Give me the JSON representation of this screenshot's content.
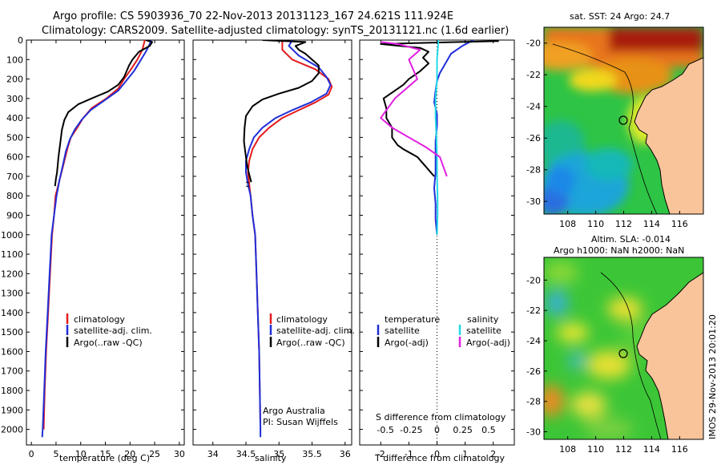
{
  "header": {
    "line1": "Argo profile: CS 5903936_70 22-Nov-2013 20131123_167 24.621S 111.924E",
    "line2": "Climatology: CARS2009. Satellite-adjusted climatology: synTS_20131121.nc (1.6d earlier)"
  },
  "colors": {
    "climatology": "#e41a1c",
    "satellite": "#1f2fd8",
    "argo": "#000000",
    "sat_salinity": "#22d8e8",
    "argo_salinity": "#e020e0",
    "land": "#f9c49a"
  },
  "chart_data": [
    {
      "type": "line",
      "panel": "temperature",
      "xlabel": "temperature (deg C)",
      "ylabel": "",
      "xlim": [
        -1,
        31
      ],
      "ylim": [
        2080,
        0
      ],
      "xticks": [
        0,
        5,
        10,
        15,
        20,
        25,
        30
      ],
      "yticks": [
        0,
        100,
        200,
        300,
        400,
        500,
        600,
        700,
        800,
        900,
        1000,
        1100,
        1200,
        1300,
        1400,
        1500,
        1600,
        1700,
        1800,
        1900,
        2000
      ],
      "series": [
        {
          "name": "climatology",
          "color": "#e41a1c",
          "points": [
            [
              23.0,
              0
            ],
            [
              22.5,
              50
            ],
            [
              21.5,
              100
            ],
            [
              20.2,
              150
            ],
            [
              18.8,
              200
            ],
            [
              17.6,
              250
            ],
            [
              15.2,
              300
            ],
            [
              12.2,
              350
            ],
            [
              10.5,
              400
            ],
            [
              9.3,
              450
            ],
            [
              8.0,
              500
            ],
            [
              7.4,
              550
            ],
            [
              6.9,
              600
            ],
            [
              6.4,
              650
            ],
            [
              5.9,
              700
            ],
            [
              5.4,
              750
            ],
            [
              4.9,
              800
            ],
            [
              4.6,
              900
            ],
            [
              4.2,
              1000
            ],
            [
              3.8,
              1200
            ],
            [
              3.4,
              1400
            ],
            [
              3.0,
              1600
            ],
            [
              2.7,
              1800
            ],
            [
              2.5,
              2000
            ]
          ]
        },
        {
          "name": "satellite-adj. clim.",
          "color": "#1f2fd8",
          "points": [
            [
              24.3,
              0
            ],
            [
              24.0,
              20
            ],
            [
              23.2,
              60
            ],
            [
              22.0,
              110
            ],
            [
              20.8,
              160
            ],
            [
              19.2,
              210
            ],
            [
              17.6,
              260
            ],
            [
              14.8,
              310
            ],
            [
              12.0,
              360
            ],
            [
              10.2,
              410
            ],
            [
              8.8,
              460
            ],
            [
              7.8,
              510
            ],
            [
              7.0,
              570
            ],
            [
              6.4,
              640
            ],
            [
              5.7,
              720
            ],
            [
              5.1,
              800
            ],
            [
              4.6,
              900
            ],
            [
              4.1,
              1000
            ],
            [
              3.7,
              1200
            ],
            [
              3.3,
              1400
            ],
            [
              2.9,
              1600
            ],
            [
              2.6,
              1800
            ],
            [
              2.3,
              2000
            ],
            [
              2.2,
              2040
            ]
          ]
        },
        {
          "name": "Argo(..raw -QC)",
          "color": "#000000",
          "points": [
            [
              23.2,
              0
            ],
            [
              24.5,
              10
            ],
            [
              24.0,
              30
            ],
            [
              21.8,
              60
            ],
            [
              20.5,
              100
            ],
            [
              19.8,
              130
            ],
            [
              18.8,
              190
            ],
            [
              17.6,
              230
            ],
            [
              15.5,
              265
            ],
            [
              12.2,
              300
            ],
            [
              9.5,
              330
            ],
            [
              7.5,
              370
            ],
            [
              6.7,
              410
            ],
            [
              6.2,
              460
            ],
            [
              5.9,
              520
            ],
            [
              5.5,
              600
            ],
            [
              5.2,
              680
            ],
            [
              5.0,
              710
            ],
            [
              4.9,
              730
            ],
            [
              4.8,
              750
            ]
          ]
        }
      ]
    },
    {
      "type": "line",
      "panel": "salinity",
      "xlabel": "salinity",
      "ylabel": "",
      "xlim": [
        33.7,
        36.1
      ],
      "ylim": [
        2080,
        0
      ],
      "xticks": [
        34,
        34.5,
        35,
        35.5,
        36
      ],
      "series": [
        {
          "name": "climatology",
          "color": "#e41a1c",
          "points": [
            [
              35.05,
              0
            ],
            [
              35.05,
              50
            ],
            [
              35.2,
              100
            ],
            [
              35.55,
              150
            ],
            [
              35.75,
              200
            ],
            [
              35.8,
              240
            ],
            [
              35.75,
              280
            ],
            [
              35.55,
              320
            ],
            [
              35.3,
              360
            ],
            [
              35.05,
              400
            ],
            [
              34.85,
              450
            ],
            [
              34.7,
              500
            ],
            [
              34.6,
              560
            ],
            [
              34.55,
              620
            ],
            [
              34.53,
              680
            ],
            [
              34.55,
              740
            ],
            [
              34.57,
              800
            ],
            [
              34.6,
              900
            ],
            [
              34.64,
              1000
            ],
            [
              34.66,
              1200
            ],
            [
              34.68,
              1400
            ],
            [
              34.7,
              1600
            ],
            [
              34.71,
              1800
            ],
            [
              34.72,
              2000
            ]
          ]
        },
        {
          "name": "satellite-adj. clim.",
          "color": "#1f2fd8",
          "points": [
            [
              35.2,
              0
            ],
            [
              35.15,
              30
            ],
            [
              35.3,
              80
            ],
            [
              35.6,
              140
            ],
            [
              35.72,
              190
            ],
            [
              35.78,
              230
            ],
            [
              35.72,
              275
            ],
            [
              35.48,
              320
            ],
            [
              35.2,
              360
            ],
            [
              34.95,
              400
            ],
            [
              34.75,
              450
            ],
            [
              34.62,
              500
            ],
            [
              34.55,
              560
            ],
            [
              34.5,
              620
            ],
            [
              34.5,
              680
            ],
            [
              34.53,
              740
            ],
            [
              34.57,
              800
            ],
            [
              34.6,
              900
            ],
            [
              34.64,
              1000
            ],
            [
              34.66,
              1200
            ],
            [
              34.68,
              1400
            ],
            [
              34.7,
              1600
            ],
            [
              34.71,
              1800
            ],
            [
              34.72,
              2000
            ],
            [
              34.72,
              2040
            ]
          ]
        },
        {
          "name": "Argo(..raw -QC)",
          "color": "#000000",
          "points": [
            [
              34.75,
              0
            ],
            [
              35.4,
              10
            ],
            [
              35.25,
              30
            ],
            [
              35.3,
              50
            ],
            [
              35.4,
              70
            ],
            [
              35.6,
              130
            ],
            [
              35.6,
              170
            ],
            [
              35.5,
              210
            ],
            [
              35.3,
              245
            ],
            [
              35.0,
              275
            ],
            [
              34.75,
              305
            ],
            [
              34.6,
              340
            ],
            [
              34.5,
              390
            ],
            [
              34.48,
              450
            ],
            [
              34.47,
              520
            ],
            [
              34.5,
              600
            ],
            [
              34.52,
              650
            ],
            [
              34.55,
              690
            ],
            [
              34.58,
              730
            ]
          ]
        }
      ]
    },
    {
      "type": "line",
      "panel": "difference",
      "xlabel": "T difference from climatology",
      "xlabel_top": "S difference from climatology",
      "ylabel": "",
      "xlim": [
        -2.75,
        2.75
      ],
      "ylim": [
        2080,
        0
      ],
      "xticks": [
        -2,
        -1,
        0,
        1,
        2
      ],
      "xticklabels": [
        "-2",
        "-1",
        "0",
        "1",
        "2"
      ],
      "xticks_top": [
        -0.5,
        -0.25,
        0,
        0.25,
        0.5
      ],
      "xticklabels_top": [
        "-0.5",
        "-0.25",
        "0",
        "0.25",
        "0.5"
      ],
      "series": [
        {
          "name": "temperature satellite",
          "color": "#1f2fd8",
          "points": [
            [
              1.3,
              0
            ],
            [
              0.9,
              30
            ],
            [
              0.5,
              70
            ],
            [
              0.3,
              120
            ],
            [
              0.1,
              170
            ],
            [
              0.0,
              210
            ],
            [
              -0.05,
              260
            ],
            [
              -0.1,
              320
            ],
            [
              0.0,
              380
            ],
            [
              0.0,
              440
            ],
            [
              -0.05,
              520
            ],
            [
              -0.05,
              600
            ],
            [
              -0.05,
              680
            ],
            [
              -0.1,
              760
            ],
            [
              -0.05,
              840
            ],
            [
              -0.05,
              920
            ],
            [
              0.0,
              1000
            ]
          ]
        },
        {
          "name": "temperature Argo(-adj)",
          "color": "#000000",
          "points": [
            [
              2.2,
              5
            ],
            [
              0.2,
              12
            ],
            [
              -2.0,
              20
            ],
            [
              -0.6,
              40
            ],
            [
              -0.3,
              60
            ],
            [
              -0.5,
              90
            ],
            [
              -0.3,
              120
            ],
            [
              -0.6,
              160
            ],
            [
              -1.0,
              200
            ],
            [
              -1.2,
              230
            ],
            [
              -1.5,
              260
            ],
            [
              -1.9,
              300
            ],
            [
              -1.8,
              350
            ],
            [
              -1.8,
              400
            ],
            [
              -1.6,
              450
            ],
            [
              -1.6,
              500
            ],
            [
              -1.4,
              540
            ],
            [
              -1.2,
              560
            ],
            [
              -0.7,
              600
            ],
            [
              -0.4,
              650
            ],
            [
              -0.1,
              700
            ]
          ]
        },
        {
          "name": "salinity satellite",
          "color": "#22d8e8",
          "points": [
            [
              0.05,
              0
            ],
            [
              0.0,
              100
            ],
            [
              0.0,
              200
            ],
            [
              -0.05,
              300
            ],
            [
              -0.05,
              400
            ],
            [
              -0.02,
              500
            ],
            [
              0.0,
              600
            ],
            [
              0.0,
              700
            ],
            [
              0.02,
              800
            ],
            [
              0.02,
              900
            ],
            [
              0.0,
              1000
            ]
          ]
        },
        {
          "name": "salinity Argo(-adj)",
          "color": "#e020e0",
          "points": [
            [
              -2.0,
              10
            ],
            [
              -1.4,
              20
            ],
            [
              -0.6,
              50
            ],
            [
              -1.0,
              100
            ],
            [
              -0.7,
              200
            ],
            [
              -1.5,
              300
            ],
            [
              -2.0,
              400
            ],
            [
              -1.6,
              450
            ],
            [
              -0.4,
              550
            ],
            [
              0.1,
              600
            ],
            [
              0.35,
              700
            ]
          ]
        }
      ]
    }
  ],
  "legend": {
    "climatology": "climatology",
    "satellite": "satellite-adj. clim.",
    "argo": "Argo(..raw -QC)",
    "diff_temp_header": "temperature",
    "diff_sal_header": "salinity",
    "diff_satellite": "satellite",
    "diff_argo": "Argo(-adj)"
  },
  "credits": {
    "line1": "Argo Australia",
    "line2": "PI: Susan Wijffels"
  },
  "maps": [
    {
      "title": "sat. SST: 24 Argo: 24.7",
      "xticks": [
        "108",
        "110",
        "112",
        "114",
        "116"
      ],
      "yticks": [
        "-20",
        "-22",
        "-24",
        "-26",
        "-28",
        "-30"
      ],
      "float_lon": 111.924,
      "float_lat": -24.621
    },
    {
      "title1": "Altim. SLA: -0.014",
      "title2": "Argo h1000: NaN h2000: NaN",
      "xticks": [
        "108",
        "110",
        "112",
        "114",
        "116"
      ],
      "yticks": [
        "-20",
        "-22",
        "-24",
        "-26",
        "-28",
        "-30"
      ],
      "float_lon": 111.924,
      "float_lat": -24.621
    }
  ],
  "stamp": "IMOS 29-Nov-2013 20:01:20"
}
